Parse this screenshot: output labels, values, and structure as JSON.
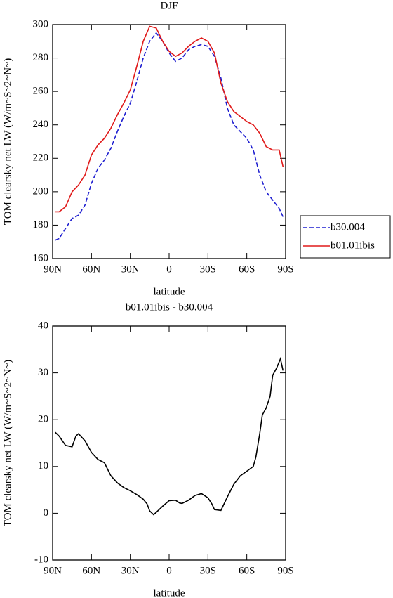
{
  "chart_data": [
    {
      "type": "line",
      "title": "DJF",
      "x_label": "latitude",
      "y_label": "TOM clearsky net LW (W/m~S~2~N~)",
      "x": [
        88,
        85,
        80,
        75,
        70,
        65,
        60,
        55,
        50,
        45,
        40,
        35,
        30,
        25,
        20,
        15,
        10,
        5,
        0,
        -5,
        -10,
        -15,
        -20,
        -25,
        -30,
        -35,
        -40,
        -45,
        -50,
        -55,
        -60,
        -65,
        -70,
        -75,
        -80,
        -85,
        -88
      ],
      "series": [
        {
          "name": "b30.004",
          "color": "#1f1fd0",
          "dash": true,
          "values": [
            171,
            172,
            178,
            184,
            186,
            192,
            205,
            214,
            219,
            226,
            236,
            245,
            253,
            266,
            280,
            290,
            295,
            290,
            283,
            278,
            280,
            285,
            287,
            288,
            287,
            281,
            268,
            250,
            240,
            236,
            232,
            225,
            210,
            200,
            195,
            190,
            185
          ]
        },
        {
          "name": "b01.01ibis",
          "color": "#e01a1a",
          "dash": false,
          "values": [
            188,
            188,
            191,
            200,
            204,
            210,
            222,
            228,
            232,
            238,
            246,
            253,
            261,
            275,
            290,
            299,
            298,
            290,
            284,
            281,
            283,
            287,
            290,
            292,
            290,
            283,
            265,
            254,
            248,
            245,
            242,
            240,
            235,
            227,
            225,
            225,
            215
          ]
        }
      ],
      "xlim": [
        90,
        -90
      ],
      "ylim": [
        160,
        300
      ],
      "xticks": [
        {
          "value": 90,
          "label": "90N"
        },
        {
          "value": 60,
          "label": "60N"
        },
        {
          "value": 30,
          "label": "30N"
        },
        0,
        {
          "value": -30,
          "label": "30S"
        },
        {
          "value": -60,
          "label": "60S"
        },
        {
          "value": -90,
          "label": "90S"
        }
      ],
      "yticks": [
        160,
        180,
        200,
        220,
        240,
        260,
        280,
        300
      ],
      "legend": "right"
    },
    {
      "type": "line",
      "title": "b01.01ibis - b30.004",
      "x_label": "latitude",
      "y_label": "TOM clearsky net LW (W/m~S~2~N~)",
      "x": [
        88,
        85,
        80,
        75,
        72,
        70,
        65,
        60,
        55,
        50,
        45,
        40,
        35,
        30,
        25,
        20,
        17,
        15,
        12,
        10,
        5,
        0,
        -5,
        -8,
        -10,
        -15,
        -20,
        -25,
        -30,
        -33,
        -35,
        -40,
        -45,
        -50,
        -55,
        -60,
        -65,
        -67,
        -70,
        -72,
        -75,
        -78,
        -80,
        -83,
        -86,
        -88
      ],
      "series": [
        {
          "color": "#000000",
          "dash": false,
          "values": [
            17.3,
            16.5,
            14.5,
            14.2,
            16.5,
            17,
            15.5,
            13,
            11.5,
            10.8,
            8,
            6.5,
            5.5,
            4.8,
            4,
            3,
            2,
            0.5,
            -0.3,
            0.2,
            1.5,
            2.7,
            2.8,
            2.2,
            2.1,
            2.8,
            3.8,
            4.2,
            3.3,
            2,
            0.8,
            0.6,
            3.5,
            6.2,
            8,
            9,
            10,
            12,
            17,
            21,
            22.5,
            25,
            29.5,
            31,
            33,
            30.5
          ]
        }
      ],
      "xlim": [
        90,
        -90
      ],
      "ylim": [
        -10,
        40
      ],
      "xticks": [
        {
          "value": 90,
          "label": "90N"
        },
        {
          "value": 60,
          "label": "60N"
        },
        {
          "value": 30,
          "label": "30N"
        },
        0,
        {
          "value": -30,
          "label": "30S"
        },
        {
          "value": -60,
          "label": "60S"
        },
        {
          "value": -90,
          "label": "90S"
        }
      ],
      "yticks": [
        -10,
        0,
        10,
        20,
        30,
        40
      ]
    }
  ]
}
